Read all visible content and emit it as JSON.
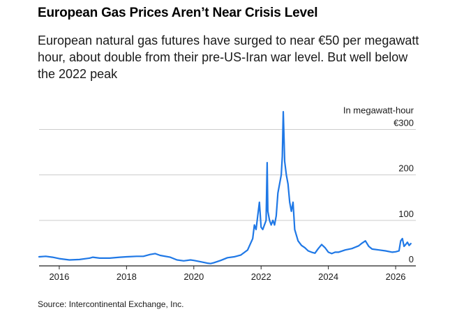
{
  "title": "European Gas Prices Aren’t Near Crisis Level",
  "subtitle": "European natural gas futures have surged to near €50 per megawatt hour, about double from their pre-US-Iran war level. But well below the 2022 peak",
  "source": "Source: Intercontinental Exchange, Inc.",
  "colors": {
    "line": "#1f78e6",
    "grid": "#cccccc",
    "axis": "#222222",
    "text": "#1a1a1a"
  },
  "chart_data": {
    "type": "line",
    "title": "European Gas Prices Aren’t Near Crisis Level",
    "subtitle": "European natural gas futures have surged to near €50 per megawatt hour, about double from their pre-US-Iran war level. But well below the 2022 peak",
    "xlabel": "",
    "ylabel": "In megawatt-hour",
    "xlim": [
      2015.4,
      2026.6
    ],
    "ylim": [
      0,
      320
    ],
    "y_ticks": [
      0,
      100,
      200,
      300
    ],
    "y_tick_labels": [
      "0",
      "100",
      "200",
      "€300"
    ],
    "x_ticks": [
      2016,
      2018,
      2020,
      2022,
      2024,
      2026
    ],
    "x_tick_labels": [
      "2016",
      "2018",
      "2020",
      "2022",
      "2024",
      "2026"
    ],
    "grid": "horizontal",
    "series": [
      {
        "values": [
          [
            2015.4,
            20
          ],
          [
            2015.6,
            21
          ],
          [
            2015.8,
            19
          ],
          [
            2016.0,
            16
          ],
          [
            2016.3,
            13
          ],
          [
            2016.6,
            14
          ],
          [
            2016.9,
            17
          ],
          [
            2017.0,
            19
          ],
          [
            2017.2,
            17
          ],
          [
            2017.5,
            17
          ],
          [
            2017.8,
            19
          ],
          [
            2018.0,
            20
          ],
          [
            2018.3,
            21
          ],
          [
            2018.5,
            21
          ],
          [
            2018.7,
            25
          ],
          [
            2018.85,
            27
          ],
          [
            2019.0,
            23
          ],
          [
            2019.3,
            19
          ],
          [
            2019.5,
            13
          ],
          [
            2019.7,
            11
          ],
          [
            2019.9,
            13
          ],
          [
            2020.0,
            12
          ],
          [
            2020.2,
            9
          ],
          [
            2020.4,
            6
          ],
          [
            2020.5,
            5
          ],
          [
            2020.6,
            7
          ],
          [
            2020.8,
            12
          ],
          [
            2021.0,
            18
          ],
          [
            2021.2,
            20
          ],
          [
            2021.4,
            24
          ],
          [
            2021.6,
            35
          ],
          [
            2021.75,
            60
          ],
          [
            2021.8,
            90
          ],
          [
            2021.85,
            80
          ],
          [
            2021.95,
            140
          ],
          [
            2022.0,
            85
          ],
          [
            2022.05,
            80
          ],
          [
            2022.15,
            100
          ],
          [
            2022.18,
            227
          ],
          [
            2022.2,
            120
          ],
          [
            2022.25,
            100
          ],
          [
            2022.3,
            90
          ],
          [
            2022.35,
            100
          ],
          [
            2022.4,
            90
          ],
          [
            2022.45,
            110
          ],
          [
            2022.5,
            160
          ],
          [
            2022.55,
            180
          ],
          [
            2022.6,
            200
          ],
          [
            2022.63,
            240
          ],
          [
            2022.66,
            339
          ],
          [
            2022.7,
            230
          ],
          [
            2022.75,
            200
          ],
          [
            2022.8,
            180
          ],
          [
            2022.85,
            140
          ],
          [
            2022.9,
            120
          ],
          [
            2022.95,
            140
          ],
          [
            2023.0,
            80
          ],
          [
            2023.1,
            55
          ],
          [
            2023.2,
            45
          ],
          [
            2023.3,
            40
          ],
          [
            2023.4,
            33
          ],
          [
            2023.5,
            30
          ],
          [
            2023.6,
            28
          ],
          [
            2023.7,
            38
          ],
          [
            2023.8,
            47
          ],
          [
            2023.9,
            40
          ],
          [
            2024.0,
            30
          ],
          [
            2024.1,
            27
          ],
          [
            2024.2,
            30
          ],
          [
            2024.3,
            30
          ],
          [
            2024.5,
            35
          ],
          [
            2024.7,
            38
          ],
          [
            2024.9,
            44
          ],
          [
            2025.0,
            50
          ],
          [
            2025.1,
            55
          ],
          [
            2025.2,
            43
          ],
          [
            2025.3,
            37
          ],
          [
            2025.5,
            35
          ],
          [
            2025.7,
            33
          ],
          [
            2025.9,
            30
          ],
          [
            2026.0,
            31
          ],
          [
            2026.1,
            33
          ],
          [
            2026.15,
            55
          ],
          [
            2026.2,
            60
          ],
          [
            2026.25,
            43
          ],
          [
            2026.3,
            47
          ],
          [
            2026.35,
            52
          ],
          [
            2026.4,
            45
          ],
          [
            2026.45,
            49
          ]
        ]
      }
    ]
  }
}
